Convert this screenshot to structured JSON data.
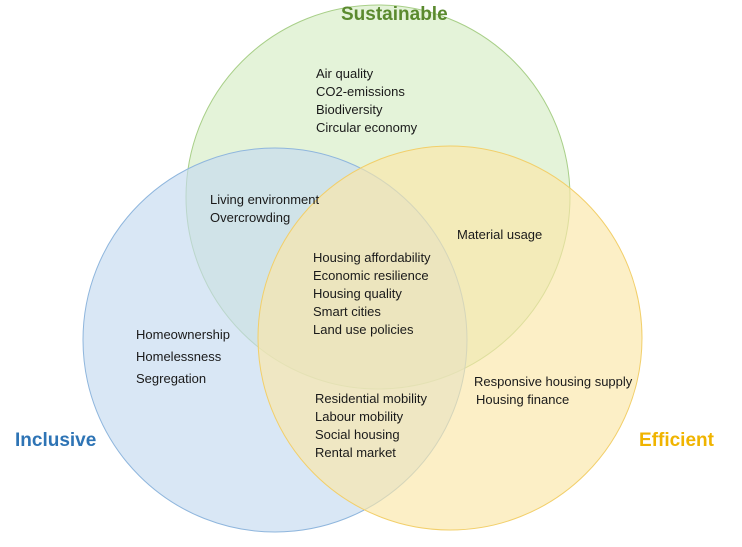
{
  "sets": {
    "sustainable": {
      "label": "Sustainable",
      "color": "#5a8a2e",
      "fill": "#d6ecc4"
    },
    "inclusive": {
      "label": "Inclusive",
      "color": "#2e74b5",
      "fill": "#c5daf0"
    },
    "efficient": {
      "label": "Efficient",
      "color": "#f0b400",
      "fill": "#fae6a8"
    }
  },
  "regions": {
    "sustainable_only": [
      "Air quality",
      "CO2-emissions",
      "Biodiversity",
      "Circular economy"
    ],
    "sustainable_inclusive": [
      "Living environment",
      "Overcrowding"
    ],
    "sustainable_efficient": [
      "Material usage"
    ],
    "all_three": [
      "Housing affordability",
      "Economic resilience",
      "Housing quality",
      "Smart cities",
      "Land use policies"
    ],
    "inclusive_only": [
      "Homeownership",
      "Homelessness",
      "Segregation"
    ],
    "inclusive_efficient": [
      "Residential mobility",
      "Labour mobility",
      "Social housing",
      "Rental market"
    ],
    "efficient_only": [
      "Responsive housing supply",
      "Housing finance"
    ]
  }
}
